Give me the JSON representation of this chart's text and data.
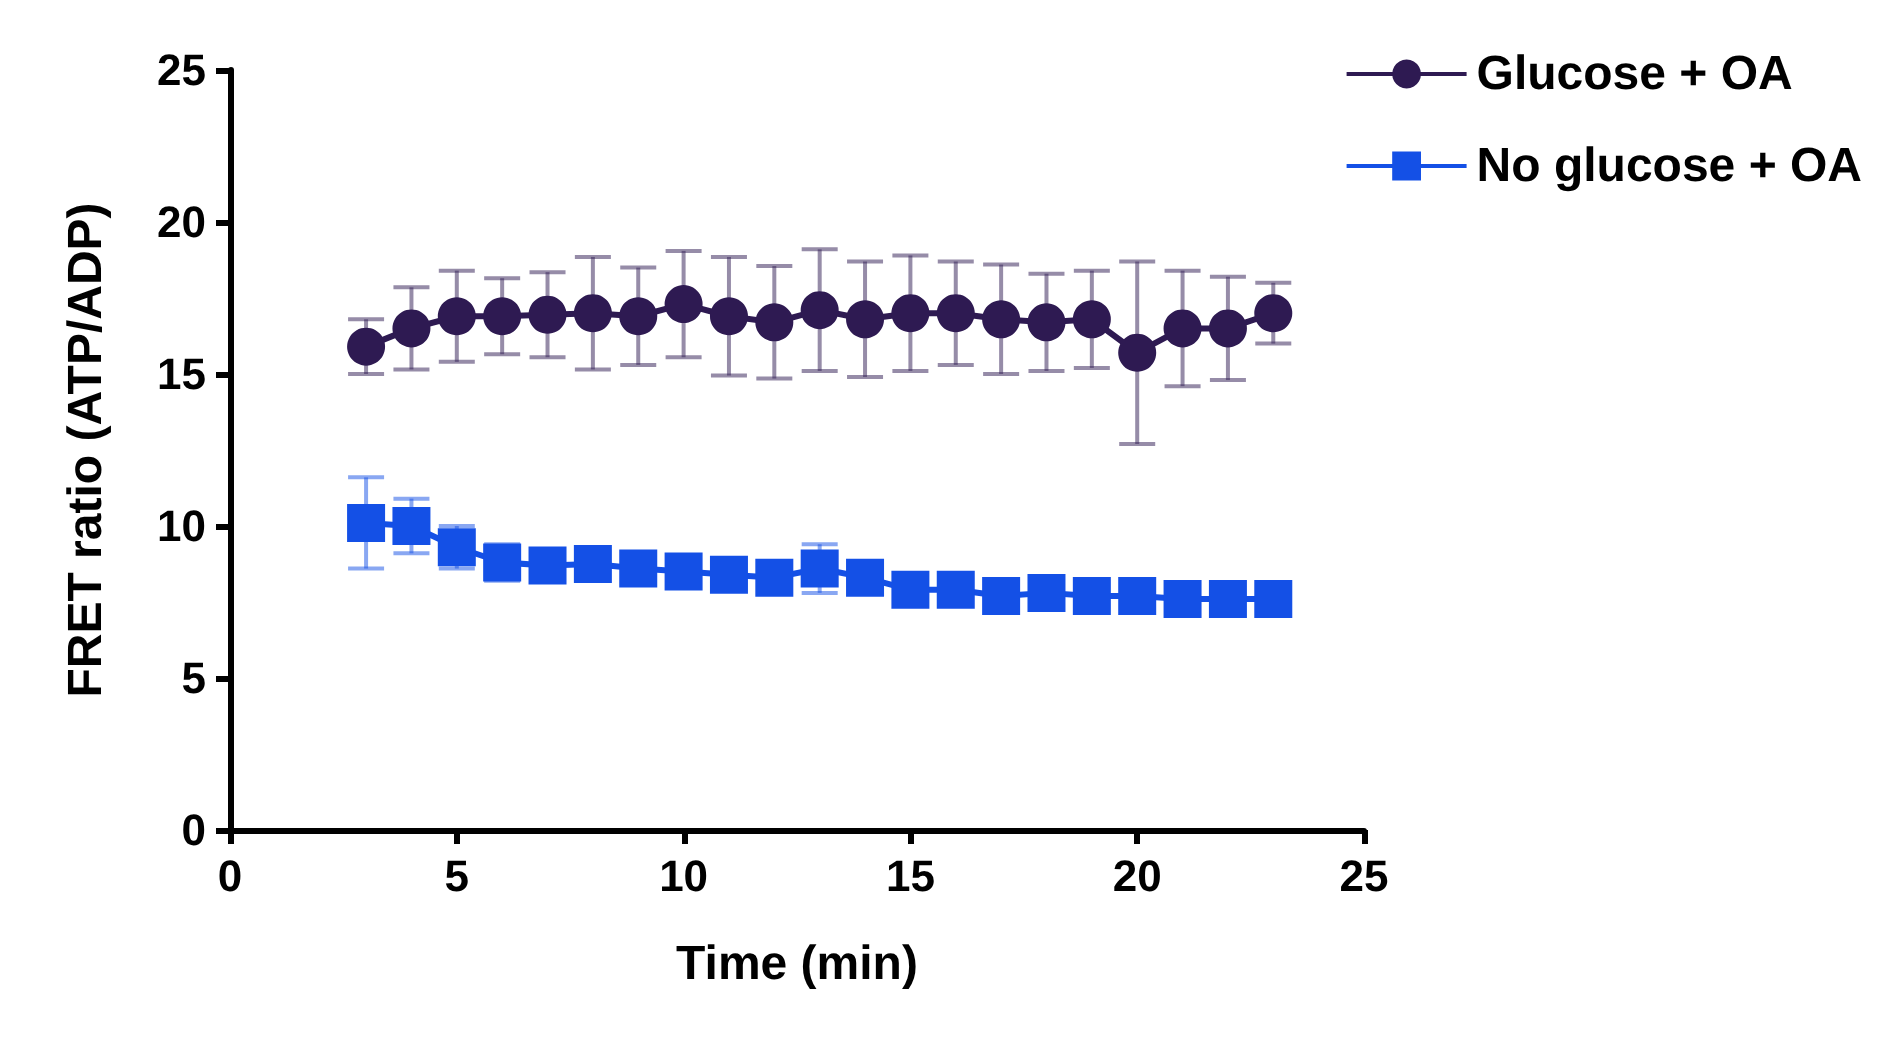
{
  "chart_data": {
    "type": "line",
    "xlabel": "Time (min)",
    "ylabel": "FRET ratio (ATP/ADP)",
    "x": [
      3,
      4,
      5,
      6,
      7,
      8,
      9,
      10,
      11,
      12,
      13,
      14,
      15,
      16,
      17,
      18,
      19,
      20,
      21,
      22,
      23
    ],
    "xlim": [
      0,
      25
    ],
    "xticks": [
      0,
      5,
      10,
      15,
      20,
      25
    ],
    "ylim": [
      0,
      25
    ],
    "yticks": [
      0,
      5,
      10,
      15,
      20,
      25
    ],
    "grid": false,
    "legend": "top right",
    "series": [
      {
        "name": "Glucose + OA",
        "color": "#2e1a52",
        "marker": "circle",
        "values": [
          15.9,
          16.5,
          16.9,
          16.9,
          16.95,
          17.0,
          16.9,
          17.3,
          16.9,
          16.7,
          17.1,
          16.8,
          17.0,
          17.0,
          16.8,
          16.7,
          16.8,
          15.7,
          16.5,
          16.5,
          17.0
        ],
        "errors": [
          0.9,
          1.35,
          1.5,
          1.25,
          1.4,
          1.85,
          1.6,
          1.75,
          1.95,
          1.85,
          2.0,
          1.9,
          1.9,
          1.7,
          1.8,
          1.6,
          1.6,
          3.0,
          1.9,
          1.7,
          1.0
        ]
      },
      {
        "name": "No glucose + OA",
        "color": "#1450e6",
        "marker": "square",
        "values": [
          10.1,
          10.0,
          9.3,
          8.8,
          8.7,
          8.75,
          8.6,
          8.5,
          8.4,
          8.3,
          8.6,
          8.3,
          7.9,
          7.9,
          7.7,
          7.8,
          7.7,
          7.7,
          7.6,
          7.6,
          7.6
        ],
        "errors": [
          1.5,
          0.9,
          0.7,
          0.6,
          null,
          null,
          null,
          null,
          null,
          null,
          0.8,
          null,
          null,
          null,
          null,
          null,
          null,
          null,
          null,
          null,
          null
        ]
      }
    ]
  }
}
